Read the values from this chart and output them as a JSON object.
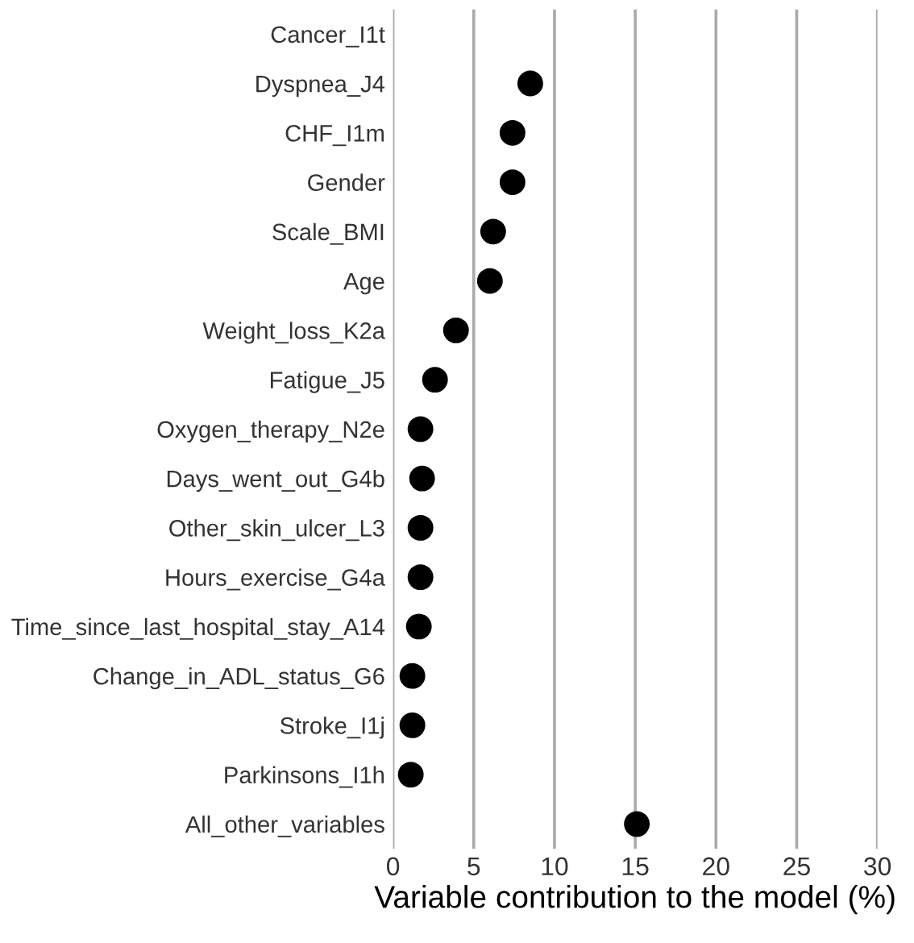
{
  "chart_data": {
    "type": "scatter",
    "categories": [
      "Cancer_I1t",
      "Dyspnea_J4",
      "CHF_I1m",
      "Gender",
      "Scale_BMI",
      "Age",
      "Weight_loss_K2a",
      "Fatigue_J5",
      "Oxygen_therapy_N2e",
      "Days_went_out_G4b",
      "Other_skin_ulcer_L3",
      "Hours_exercise_G4a",
      "Time_since_last_hospital_stay_A14",
      "Change_in_ADL_status_G6",
      "Stroke_I1j",
      "Parkinsons_I1h",
      "All_other_variables"
    ],
    "orientation": "horizontal",
    "series": [
      {
        "color": "#000000",
        "values": [
          null,
          8.5,
          7.4,
          7.4,
          6.2,
          6.0,
          3.9,
          2.6,
          1.7,
          1.8,
          1.7,
          1.7,
          1.6,
          1.2,
          1.2,
          1.1,
          15.1
        ]
      }
    ],
    "xlim": [
      0,
      30
    ],
    "xticks": [
      0,
      5,
      10,
      15,
      20,
      25,
      30
    ],
    "xlabel": "Variable contribution to the model (%)",
    "grid": "x",
    "marker": "circle"
  }
}
